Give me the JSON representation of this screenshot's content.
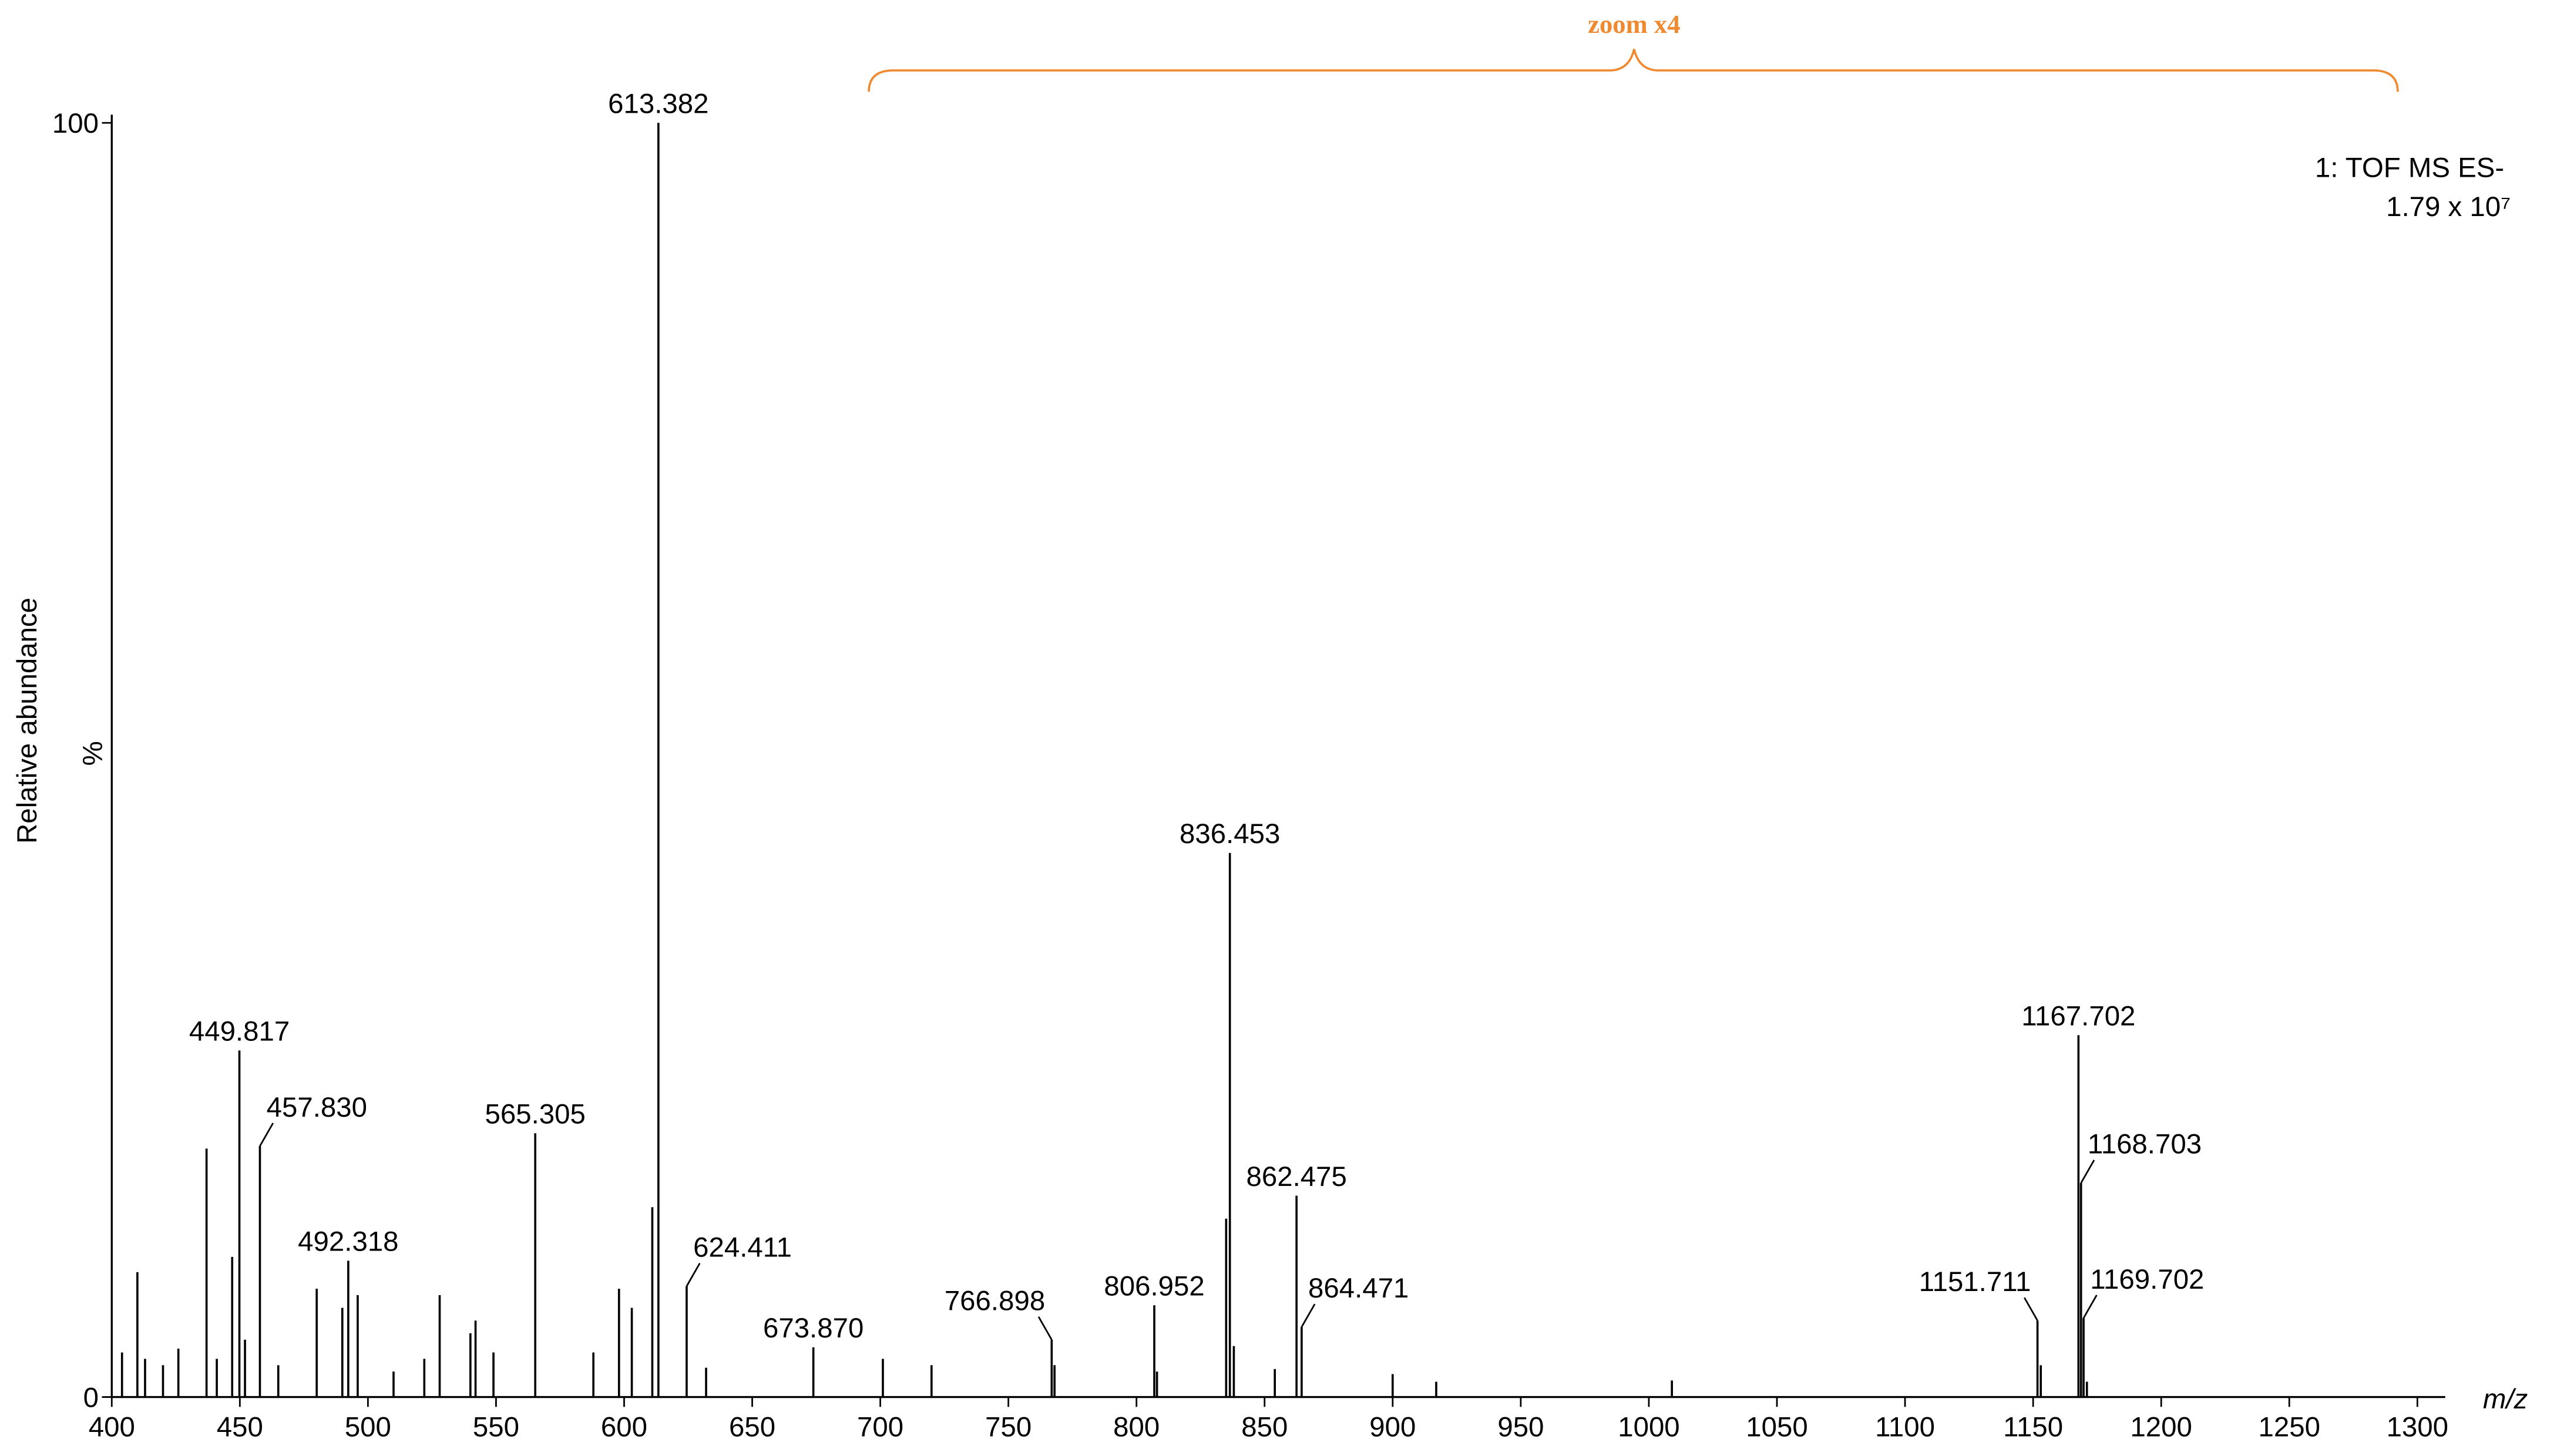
{
  "chart_data": {
    "type": "stem",
    "annotation": "zoom x4",
    "instrument": "1: TOF MS ES-",
    "intensity": "1.79 x 10⁷",
    "x_label": "m/z",
    "y_label": "Relative abundance",
    "y_unit": "%",
    "color": "#000000",
    "annotation_color": "#f08a30",
    "xlim": [
      400,
      1300
    ],
    "ylim": [
      0,
      100
    ],
    "xticks": [
      400,
      450,
      500,
      550,
      600,
      650,
      700,
      750,
      800,
      850,
      900,
      950,
      1000,
      1050,
      1100,
      1150,
      1200,
      1250,
      1300
    ],
    "yticks": [
      0,
      100
    ],
    "x": [
      404,
      410,
      413,
      420,
      426,
      437,
      441,
      447,
      449.817,
      452,
      457.83,
      465,
      480,
      490,
      492.318,
      496,
      510,
      522,
      528,
      540,
      542,
      549,
      565.305,
      588,
      598,
      603,
      611,
      613.382,
      624.411,
      632,
      673.87,
      701,
      720,
      766.898,
      768,
      806.952,
      808,
      835,
      836.453,
      838,
      854,
      862.475,
      864.471,
      900,
      917,
      1009,
      1151.711,
      1153,
      1167.702,
      1168.703,
      1169.702,
      1171
    ],
    "values": [
      3.5,
      9.8,
      3,
      2.5,
      3.8,
      19.5,
      3,
      11,
      27.2,
      4.5,
      19.7,
      2.5,
      8.5,
      7,
      10.7,
      8,
      2,
      3,
      8,
      5,
      6,
      3.5,
      20.7,
      3.5,
      8.5,
      7,
      14.9,
      100,
      8.7,
      2.3,
      3.9,
      3,
      2.5,
      4.5,
      2.5,
      7.2,
      2,
      14,
      42.7,
      4,
      2.2,
      15.8,
      5.5,
      1.8,
      1.2,
      1.3,
      6,
      2.5,
      28.4,
      16.8,
      6.2,
      1.2
    ],
    "peak_labels": [
      null,
      null,
      null,
      null,
      null,
      null,
      null,
      null,
      "449.817",
      null,
      "457.830",
      null,
      null,
      null,
      "492.318",
      null,
      null,
      null,
      null,
      null,
      null,
      null,
      "565.305",
      null,
      null,
      null,
      null,
      "613.382",
      "624.411",
      null,
      "673.870",
      null,
      null,
      "766.898",
      null,
      "806.952",
      null,
      null,
      "836.453",
      null,
      null,
      "862.475",
      "864.471",
      null,
      null,
      null,
      "1151.711",
      null,
      "1167.702",
      "1168.703",
      "1169.702",
      null
    ]
  }
}
